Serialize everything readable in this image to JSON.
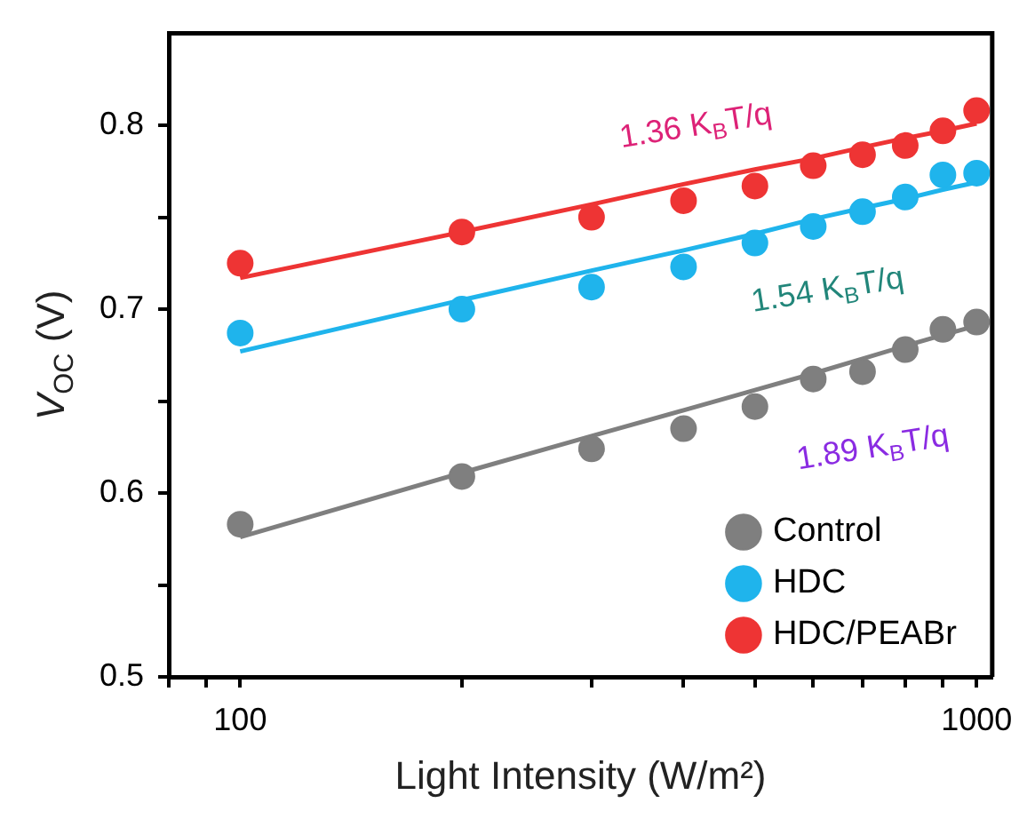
{
  "chart_data": {
    "type": "scatter",
    "xlabel": "Light Intensity (W/m²)",
    "ylabel": "V$_{OC}$ (V)",
    "log": "x",
    "xlim": [
      80,
      1050
    ],
    "xticks": [
      {
        "value": 80,
        "label": null
      },
      {
        "value": 90,
        "label": null
      },
      100,
      {
        "value": 200,
        "label": null
      },
      {
        "value": 300,
        "label": null
      },
      {
        "value": 400,
        "label": null
      },
      {
        "value": 500,
        "label": null
      },
      {
        "value": 600,
        "label": null
      },
      {
        "value": 700,
        "label": null
      },
      {
        "value": 800,
        "label": null
      },
      {
        "value": 900,
        "label": null
      },
      1000
    ],
    "ylim": [
      0.5,
      0.85
    ],
    "yticks": [
      0.5,
      {
        "value": 0.55,
        "label": null
      },
      0.6,
      {
        "value": 0.65,
        "label": null
      },
      0.7,
      {
        "value": 0.75,
        "label": null
      },
      0.8
    ],
    "grid": false,
    "legend": "bottom right",
    "marker": "circle",
    "x": [
      100,
      200,
      300,
      400,
      500,
      600,
      700,
      800,
      900,
      1000
    ],
    "series": [
      {
        "name": "Control",
        "color": "#7f7f7f",
        "values": [
          0.583,
          0.609,
          0.624,
          0.635,
          0.647,
          0.662,
          0.666,
          0.678,
          0.689,
          0.693
        ]
      },
      {
        "name": "HDC",
        "color": "#1fb4ec",
        "values": [
          0.687,
          0.7,
          0.712,
          0.723,
          0.736,
          0.745,
          0.753,
          0.761,
          0.773,
          0.774
        ]
      },
      {
        "name": "HDC/PEABr",
        "color": "#ee3434",
        "values": [
          0.725,
          0.742,
          0.75,
          0.759,
          0.767,
          0.778,
          0.784,
          0.789,
          0.797,
          0.808
        ]
      },
      {
        "type": "line",
        "marker": "none",
        "color": "#7f7f7f",
        "values": [
          0.576,
          0.611,
          0.631,
          0.645,
          0.656,
          0.665,
          0.673,
          0.68,
          0.686,
          0.691
        ]
      },
      {
        "type": "line",
        "marker": "none",
        "color": "#1fb4ec",
        "values": [
          0.677,
          0.705,
          0.721,
          0.732,
          0.741,
          0.749,
          0.755,
          0.76,
          0.765,
          0.769
        ]
      },
      {
        "type": "line",
        "marker": "none",
        "color": "#ee3434",
        "values": [
          0.717,
          0.742,
          0.757,
          0.768,
          0.776,
          0.782,
          0.788,
          0.793,
          0.797,
          0.801
        ]
      }
    ],
    "annotations": [
      "1.36 K$_{B}$T/q",
      "1.54 K$_{B}$T/q",
      "1.89 K$_{B}$T/q"
    ]
  }
}
